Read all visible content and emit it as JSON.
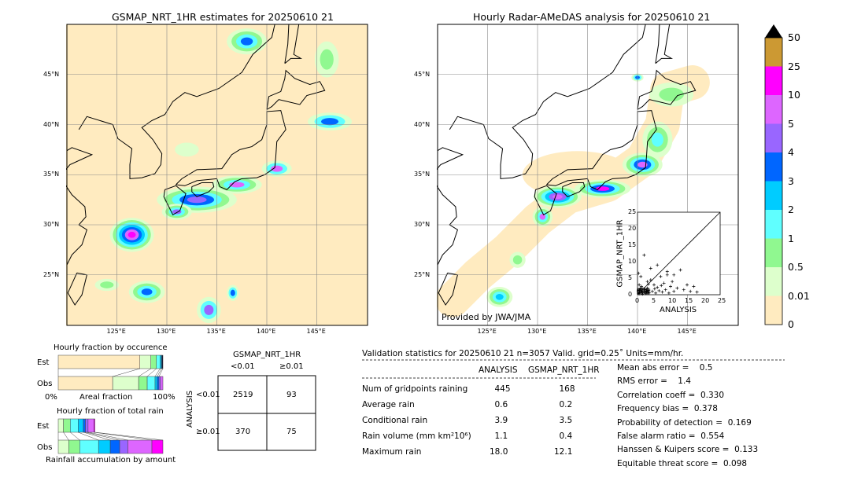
{
  "left_map": {
    "title": "GSMAP_NRT_1HR estimates for 20250610 21",
    "lon_ticks": [
      "125°E",
      "130°E",
      "135°E",
      "140°E",
      "145°E"
    ],
    "lat_ticks": [
      "45°N",
      "40°N",
      "35°N",
      "30°N",
      "25°N"
    ]
  },
  "right_map": {
    "title": "Hourly Radar-AMeDAS analysis for 20250610 21",
    "lon_ticks": [
      "125°E",
      "130°E",
      "135°E",
      "140°E",
      "145°E"
    ],
    "lat_ticks": [
      "45°N",
      "40°N",
      "35°N",
      "30°N",
      "25°N"
    ],
    "credit": "Provided by JWA/JMA"
  },
  "colorbar": {
    "labels": [
      "0",
      "0.01",
      "0.5",
      "1",
      "2",
      "3",
      "4",
      "5",
      "10",
      "25",
      "50"
    ],
    "colors": [
      "#FFEBC0",
      "#DDFFCC",
      "#90F890",
      "#60FFFF",
      "#00CCFF",
      "#0066FF",
      "#9966FF",
      "#DD66FF",
      "#FF00FF",
      "#CC9933"
    ],
    "extend_color": "#000000"
  },
  "chart_data": [
    {
      "type": "scatter",
      "xlabel": "ANALYSIS",
      "ylabel": "GSMAP_NRT_1HR",
      "xlim": [
        0,
        25
      ],
      "ylim": [
        0,
        25
      ],
      "ticks": [
        "0",
        "5",
        "10",
        "15",
        "20",
        "25"
      ],
      "points": [
        [
          0.5,
          0.3
        ],
        [
          1,
          0.8
        ],
        [
          1.5,
          0.2
        ],
        [
          2,
          1.5
        ],
        [
          2.5,
          0.4
        ],
        [
          3,
          2
        ],
        [
          3.5,
          0.6
        ],
        [
          4,
          4.5
        ],
        [
          4.5,
          1
        ],
        [
          5,
          3
        ],
        [
          5.5,
          0.5
        ],
        [
          6,
          2.2
        ],
        [
          6.5,
          1.2
        ],
        [
          7,
          5.5
        ],
        [
          7.5,
          0.8
        ],
        [
          8,
          3.5
        ],
        [
          8.5,
          1.5
        ],
        [
          9,
          6
        ],
        [
          9.5,
          0.5
        ],
        [
          10,
          2.5
        ],
        [
          10.5,
          4
        ],
        [
          11,
          1
        ],
        [
          12,
          2
        ],
        [
          13,
          7.5
        ],
        [
          14,
          1.5
        ],
        [
          15,
          3
        ],
        [
          16,
          1
        ],
        [
          17,
          2.5
        ],
        [
          18,
          0.8
        ],
        [
          2,
          12
        ],
        [
          3,
          4
        ],
        [
          1,
          5.5
        ],
        [
          0.3,
          6.5
        ],
        [
          0.5,
          3
        ],
        [
          1.2,
          2.5
        ],
        [
          4,
          8
        ],
        [
          6,
          9
        ],
        [
          9,
          7
        ],
        [
          11,
          6
        ],
        [
          0.2,
          1
        ],
        [
          0.8,
          1.8
        ],
        [
          2.8,
          1
        ],
        [
          3.3,
          3.2
        ],
        [
          5.2,
          1.8
        ],
        [
          7.2,
          2.8
        ]
      ]
    },
    {
      "type": "bar",
      "title": "Hourly fraction by occurence",
      "xlabel": "Areal fraction",
      "categories": [
        "Est",
        "Obs"
      ],
      "tick_labels": [
        "0%",
        "100%"
      ],
      "series": [
        {
          "category": "Est",
          "fractions": [
            0.78,
            0.105,
            0.053,
            0.035,
            0.015,
            0.012
          ]
        },
        {
          "category": "Obs",
          "fractions": [
            0.52,
            0.248,
            0.082,
            0.075,
            0.02,
            0.017,
            0.015,
            0.023
          ]
        }
      ]
    },
    {
      "type": "bar",
      "title": "Hourly fraction of total rain",
      "xlabel": "Rainfall accumulation by amount",
      "categories": [
        "Est",
        "Obs"
      ],
      "series": [
        {
          "category": "Est",
          "fractions": [
            0.05,
            0.065,
            0.075,
            0.05,
            0.02,
            0.025,
            0.055,
            0.01
          ]
        },
        {
          "category": "Obs",
          "fractions": [
            0.1,
            0.105,
            0.18,
            0.112,
            0.09,
            0.078,
            0.23,
            0.105
          ]
        }
      ]
    }
  ],
  "contingency": {
    "title": "GSMAP_NRT_1HR",
    "col_labels": [
      "<0.01",
      "≥0.01"
    ],
    "row_title": "ANALYSIS",
    "row_labels": [
      "<0.01",
      "≥0.01"
    ],
    "cells": [
      [
        "2519",
        "93"
      ],
      [
        "370",
        "75"
      ]
    ]
  },
  "stats": {
    "header": "Validation statistics for 20250610 21  n=3057 Valid. grid=0.25˚ Units=mm/hr.",
    "col_analysis": "ANALYSIS",
    "col_gsmap": "GSMAP_NRT_1HR",
    "rows": [
      {
        "label": "Num of gridpoints raining",
        "a": "445",
        "g": "168"
      },
      {
        "label": "Average rain",
        "a": "0.6",
        "g": "0.2"
      },
      {
        "label": "Conditional rain",
        "a": "3.9",
        "g": "3.5"
      },
      {
        "label": "Rain volume (mm km²10⁶)",
        "a": "1.1",
        "g": "0.4"
      },
      {
        "label": "Maximum rain",
        "a": "18.0",
        "g": "12.1"
      }
    ],
    "scores": [
      "Mean abs error =    0.5",
      "RMS error =    1.4",
      "Correlation coeff =  0.330",
      "Frequency bias =  0.378",
      "Probability of detection =  0.169",
      "False alarm ratio =  0.554",
      "Hanssen & Kuipers score =  0.133",
      "Equitable threat score =  0.098"
    ]
  }
}
